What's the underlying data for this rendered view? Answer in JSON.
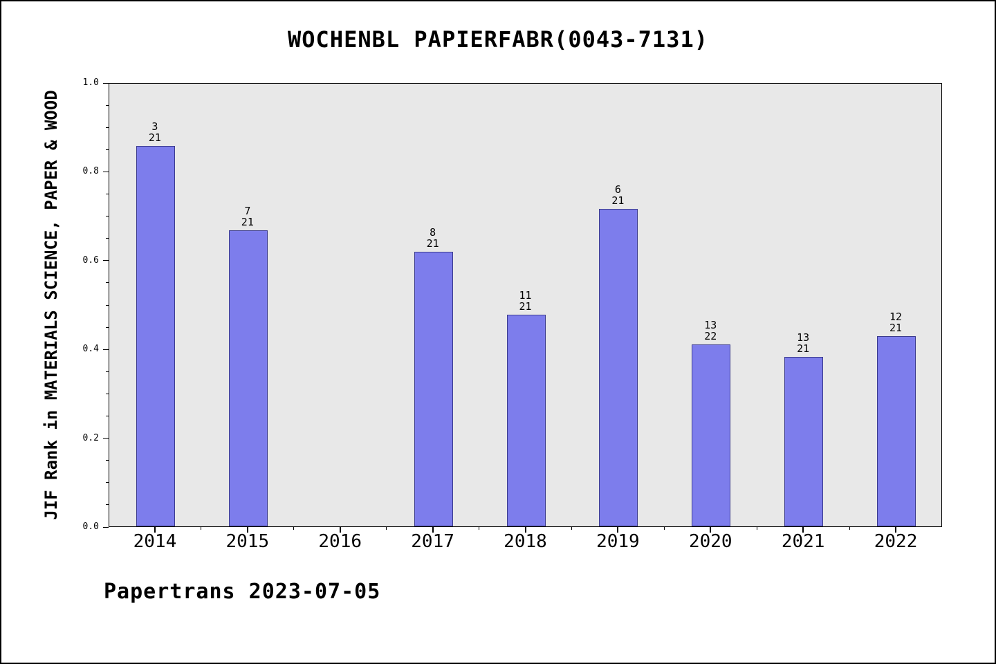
{
  "footer": "Papertrans 2023-07-05",
  "chart_data": {
    "type": "bar",
    "title": "WOCHENBL PAPIERFABR(0043-7131)",
    "xlabel": "",
    "ylabel": "JIF Rank in MATERIALS SCIENCE, PAPER & WOOD",
    "categories": [
      "2014",
      "2015",
      "2016",
      "2017",
      "2018",
      "2019",
      "2020",
      "2021",
      "2022"
    ],
    "values": [
      0.8571,
      0.6667,
      null,
      0.619,
      0.4762,
      0.7143,
      0.4091,
      0.381,
      0.4286
    ],
    "bar_labels": [
      {
        "rank": "3",
        "total": "21"
      },
      {
        "rank": "7",
        "total": "21"
      },
      null,
      {
        "rank": "8",
        "total": "21"
      },
      {
        "rank": "11",
        "total": "21"
      },
      {
        "rank": "6",
        "total": "21"
      },
      {
        "rank": "13",
        "total": "22"
      },
      {
        "rank": "13",
        "total": "21"
      },
      {
        "rank": "12",
        "total": "21"
      }
    ],
    "ylim": [
      0.0,
      1.0
    ],
    "yticks": [
      0.0,
      0.2,
      0.4,
      0.6,
      0.8,
      1.0
    ],
    "ytick_minor_step": 0.05,
    "grid": "off",
    "legend": "none",
    "bar_color": "#7d7dec",
    "bar_edge_color": "#3a3a8c",
    "plot_bg": "#e8e8e8"
  }
}
